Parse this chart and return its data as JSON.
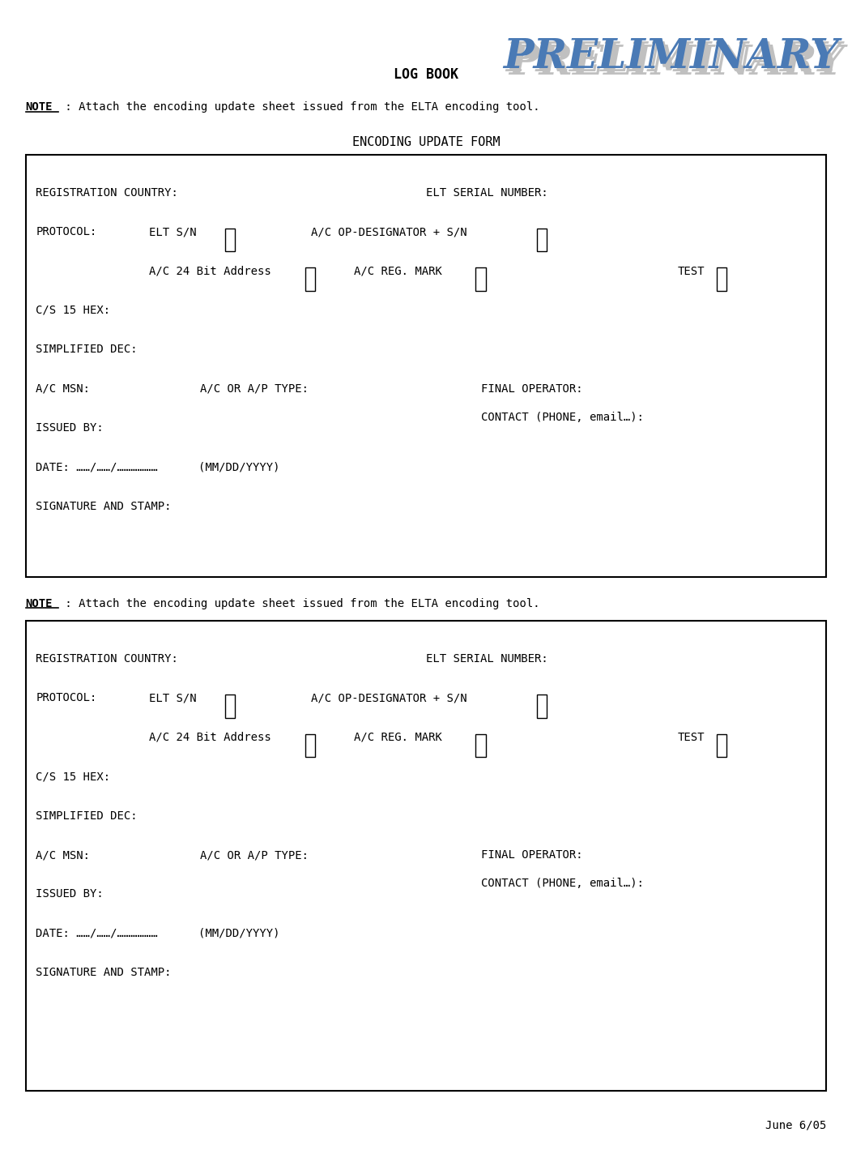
{
  "page_width": 10.52,
  "page_height": 14.24,
  "background_color": "#ffffff",
  "preliminary_text": "PRELIMINARY",
  "preliminary_color": "#4a7ab5",
  "preliminary_shadow_color": "#c0c0c0",
  "logbook_text": "LOG BOOK",
  "note_text": "NOTE",
  "note_rest": " : Attach the encoding update sheet issued from the ELTA encoding tool.",
  "form_title": "ENCODING UPDATE FORM",
  "footer_text": "June 6/05",
  "font_size_preliminary": 36,
  "text_color": "#000000"
}
